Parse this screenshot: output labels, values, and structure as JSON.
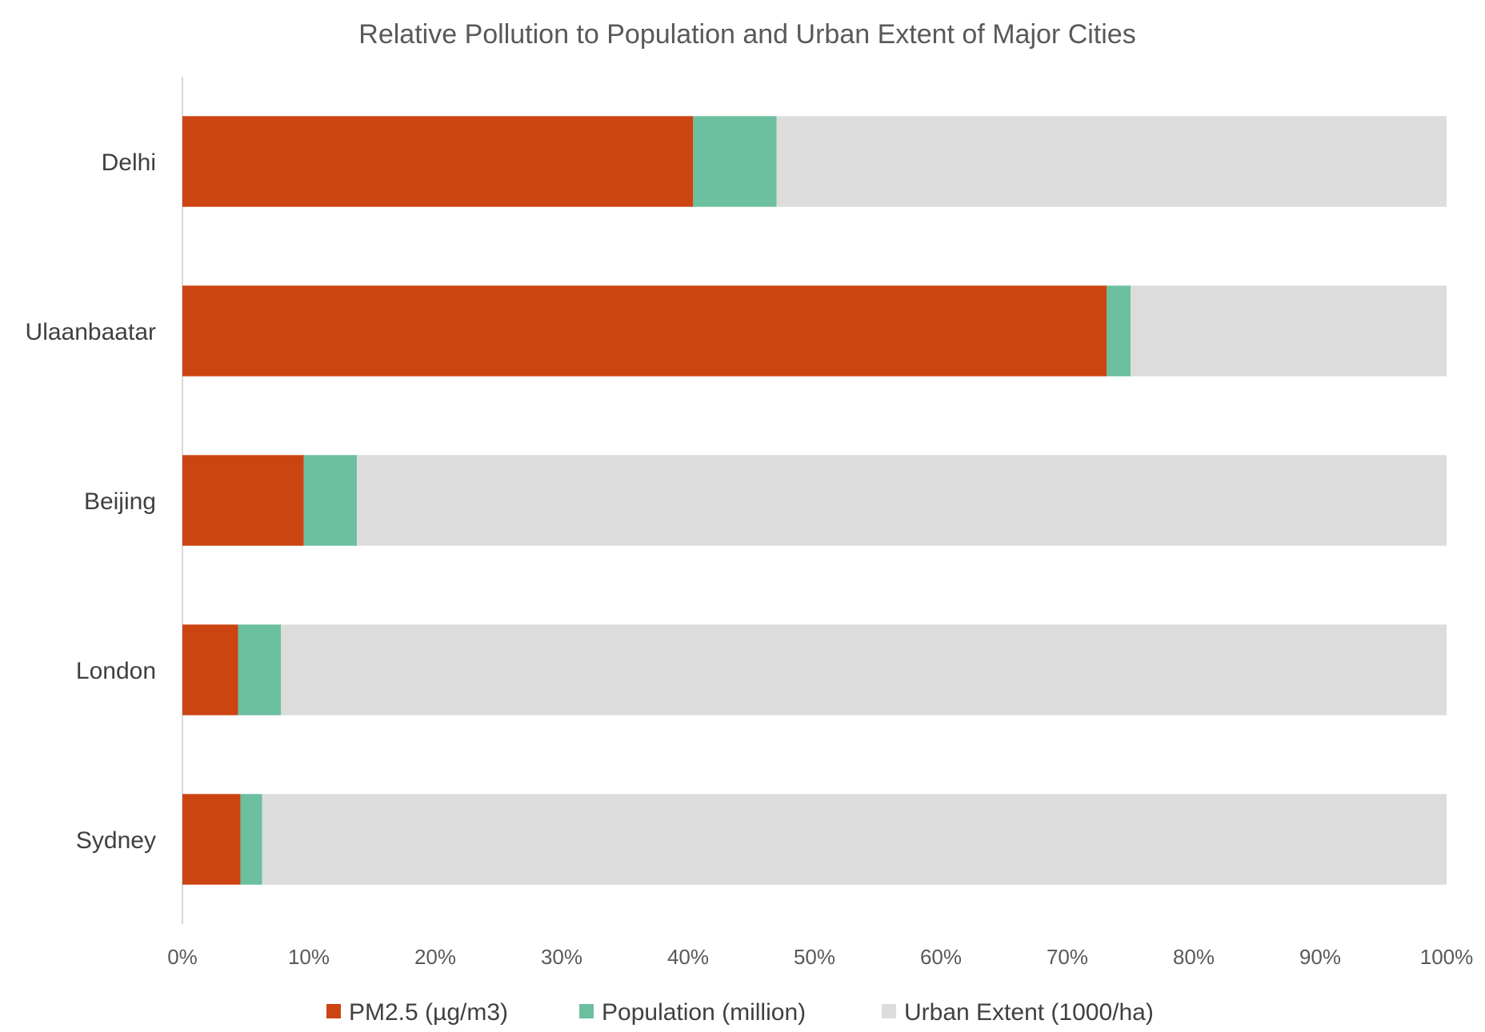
{
  "chart_data": {
    "type": "bar",
    "orientation": "horizontal",
    "stacking": "percent",
    "title": "Relative Pollution to Population and Urban Extent of Major Cities",
    "xlabel": "",
    "ylabel": "",
    "categories": [
      "Delhi",
      "Ulaanbaatar",
      "Beijing",
      "London",
      "Sydney"
    ],
    "series": [
      {
        "name": "PM2.5  (µg/m3)",
        "color": "#cc4411",
        "values": [
          40.4,
          73.1,
          9.6,
          4.4,
          4.6
        ]
      },
      {
        "name": "Population (million)",
        "color": "#6cbf9f",
        "values": [
          6.6,
          1.9,
          4.2,
          3.4,
          1.7
        ]
      },
      {
        "name": "Urban Extent (1000/ha)",
        "color": "#dcdcdc",
        "values": [
          53.0,
          25.0,
          86.2,
          92.2,
          93.7
        ]
      }
    ],
    "xlim": [
      0,
      100
    ],
    "ticks": [
      "0%",
      "10%",
      "20%",
      "30%",
      "40%",
      "50%",
      "60%",
      "70%",
      "80%",
      "90%",
      "100%"
    ],
    "grid": false,
    "legend": "bottom"
  }
}
